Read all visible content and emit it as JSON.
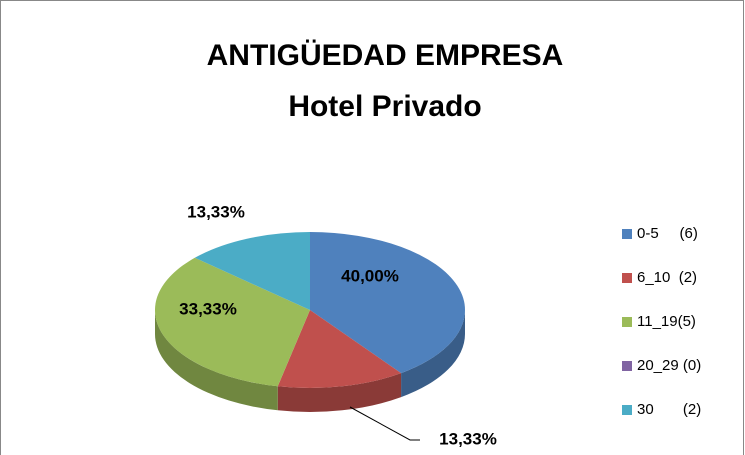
{
  "chart_data": {
    "type": "pie3d",
    "title": "ANTIGÜEDAD EMPRESA",
    "subtitle": "Hotel Privado",
    "categories": [
      "0-5     (6)",
      "6_10  (2)",
      "11_19(5)",
      "20_29 (0)",
      "30       (2)"
    ],
    "values": [
      40,
      13.33,
      33.33,
      0,
      13.33
    ],
    "value_labels": [
      "40,00%",
      "13,33%",
      "33,33%",
      null,
      "13,33%"
    ],
    "colors": [
      "#4f81bd",
      "#c0504d",
      "#9bbb59",
      "#8064a2",
      "#4bacc6"
    ],
    "legend": "right"
  }
}
